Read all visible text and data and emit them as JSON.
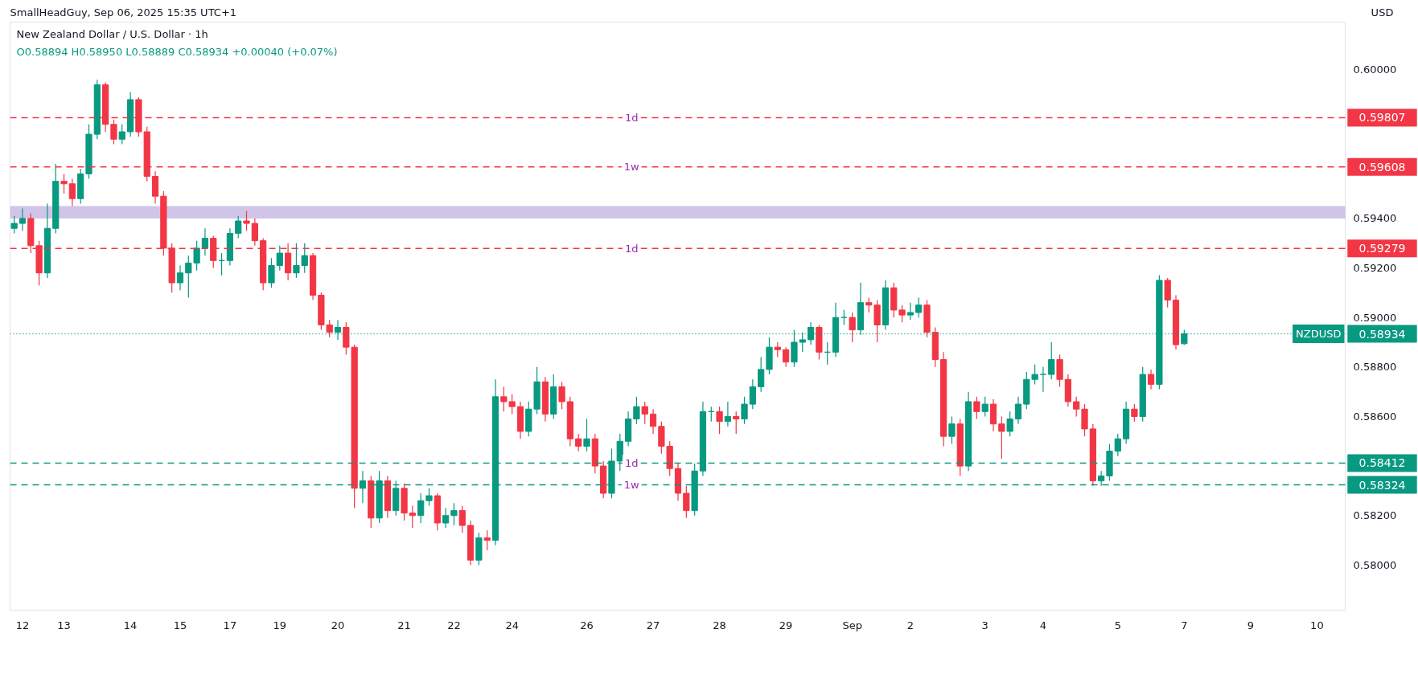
{
  "chart_data": {
    "type": "candlestick",
    "title": "New Zealand Dollar / U.S. Dollar · 1h",
    "subtitle": "O0.58894 H0.58950 L0.58889 C0.58934 +0.00040 (+0.07%)",
    "annotations": [
      "SmallHeadGuy, Sep 06, 2025 15:35 UTC+1",
      "USD",
      "0.59807",
      "0.59608",
      "0.59279",
      "0.58412",
      "0.58324",
      "0.58934"
    ],
    "categories": [
      null,
      "12",
      null,
      null,
      null,
      null,
      "13",
      null,
      null,
      null,
      null,
      null,
      null,
      null,
      "14",
      null,
      null,
      null,
      null,
      null,
      "15",
      null,
      null,
      null,
      null,
      null,
      "17",
      null,
      null,
      null,
      null,
      null,
      "19",
      null,
      null,
      null,
      null,
      null,
      null,
      "20",
      null,
      null,
      null,
      null,
      null,
      null,
      null,
      "21",
      null,
      null,
      null,
      null,
      null,
      "22",
      null,
      null,
      null,
      null,
      null,
      null,
      "24",
      null,
      null,
      null,
      null,
      null,
      null,
      null,
      null,
      "26",
      null,
      null,
      null,
      null,
      null,
      null,
      null,
      "27",
      null,
      null,
      null,
      null,
      null,
      null,
      null,
      "28",
      null,
      null,
      null,
      null,
      null,
      null,
      null,
      "29",
      null,
      null,
      null,
      null,
      null,
      null,
      null,
      "Sep",
      null,
      null,
      null,
      null,
      null,
      null,
      "2",
      null,
      null,
      null,
      null,
      null,
      null,
      null,
      null,
      "3",
      null,
      null,
      null,
      null,
      null,
      null,
      "4",
      null,
      null,
      null,
      null,
      null,
      null,
      null,
      null,
      "5",
      null,
      null,
      null,
      null,
      null,
      null,
      null,
      "7",
      null,
      null,
      null,
      null,
      null,
      null,
      null,
      "9",
      null,
      null,
      null,
      null,
      null,
      null,
      null,
      "10",
      null,
      null,
      null
    ],
    "ohlc": [
      [
        0.5936,
        0.5941,
        0.5934,
        0.5938
      ],
      [
        0.5938,
        0.5944,
        0.5935,
        0.594
      ],
      [
        0.594,
        0.5942,
        0.5926,
        0.5929
      ],
      [
        0.5929,
        0.5931,
        0.5913,
        0.5918
      ],
      [
        0.5918,
        0.5946,
        0.5916,
        0.5936
      ],
      [
        0.5936,
        0.5962,
        0.5934,
        0.5955
      ],
      [
        0.5955,
        0.5958,
        0.595,
        0.5954
      ],
      [
        0.5954,
        0.5956,
        0.5945,
        0.5948
      ],
      [
        0.5948,
        0.596,
        0.5946,
        0.5958
      ],
      [
        0.5958,
        0.5978,
        0.5956,
        0.5974
      ],
      [
        0.5974,
        0.5996,
        0.5972,
        0.5994
      ],
      [
        0.5994,
        0.5995,
        0.5975,
        0.5978
      ],
      [
        0.5978,
        0.598,
        0.597,
        0.5972
      ],
      [
        0.5972,
        0.5978,
        0.597,
        0.5975
      ],
      [
        0.5975,
        0.5991,
        0.5973,
        0.5988
      ],
      [
        0.5988,
        0.5989,
        0.5973,
        0.5975
      ],
      [
        0.5975,
        0.5977,
        0.5955,
        0.5957
      ],
      [
        0.5957,
        0.5959,
        0.5946,
        0.5949
      ],
      [
        0.5949,
        0.5951,
        0.5925,
        0.5928
      ],
      [
        0.5928,
        0.593,
        0.591,
        0.5914
      ],
      [
        0.5914,
        0.5921,
        0.5911,
        0.5918
      ],
      [
        0.5918,
        0.5925,
        0.5908,
        0.5922
      ],
      [
        0.5922,
        0.5931,
        0.5919,
        0.5928
      ],
      [
        0.5928,
        0.5936,
        0.5925,
        0.5932
      ],
      [
        0.5932,
        0.5933,
        0.592,
        0.5923
      ],
      [
        0.5923,
        0.5926,
        0.5917,
        0.5923
      ],
      [
        0.5923,
        0.5936,
        0.5921,
        0.5934
      ],
      [
        0.5934,
        0.5941,
        0.5932,
        0.5939
      ],
      [
        0.5939,
        0.5943,
        0.5935,
        0.5938
      ],
      [
        0.5938,
        0.594,
        0.5929,
        0.5931
      ],
      [
        0.5931,
        0.5932,
        0.5911,
        0.5914
      ],
      [
        0.5914,
        0.5924,
        0.5912,
        0.5921
      ],
      [
        0.5921,
        0.5929,
        0.5919,
        0.5926
      ],
      [
        0.5926,
        0.593,
        0.5915,
        0.5918
      ],
      [
        0.5918,
        0.593,
        0.5916,
        0.5921
      ],
      [
        0.5921,
        0.593,
        0.5918,
        0.5925
      ],
      [
        0.5925,
        0.5926,
        0.5907,
        0.5909
      ],
      [
        0.5909,
        0.591,
        0.5895,
        0.5897
      ],
      [
        0.5897,
        0.5899,
        0.5892,
        0.5894
      ],
      [
        0.5894,
        0.5899,
        0.5891,
        0.5896
      ],
      [
        0.5896,
        0.5898,
        0.5885,
        0.5888
      ],
      [
        0.5888,
        0.5889,
        0.5823,
        0.5831
      ],
      [
        0.5831,
        0.5838,
        0.5825,
        0.5834
      ],
      [
        0.5834,
        0.5836,
        0.5815,
        0.5819
      ],
      [
        0.5819,
        0.5838,
        0.5817,
        0.5834
      ],
      [
        0.5834,
        0.5836,
        0.5819,
        0.5822
      ],
      [
        0.5822,
        0.5834,
        0.582,
        0.5831
      ],
      [
        0.5831,
        0.5833,
        0.5818,
        0.5821
      ],
      [
        0.5821,
        0.5824,
        0.5815,
        0.582
      ],
      [
        0.582,
        0.5829,
        0.5817,
        0.5826
      ],
      [
        0.5826,
        0.5831,
        0.5824,
        0.5828
      ],
      [
        0.5828,
        0.5829,
        0.5814,
        0.5817
      ],
      [
        0.5817,
        0.5823,
        0.5815,
        0.582
      ],
      [
        0.582,
        0.5825,
        0.5816,
        0.5822
      ],
      [
        0.5822,
        0.5824,
        0.5813,
        0.5816
      ],
      [
        0.5816,
        0.5818,
        0.58,
        0.5802
      ],
      [
        0.5802,
        0.5813,
        0.58,
        0.5811
      ],
      [
        0.5811,
        0.5814,
        0.5806,
        0.581
      ],
      [
        0.581,
        0.5875,
        0.5808,
        0.5868
      ],
      [
        0.5868,
        0.5872,
        0.5862,
        0.5866
      ],
      [
        0.5866,
        0.5869,
        0.5861,
        0.5864
      ],
      [
        0.5864,
        0.5866,
        0.5851,
        0.5854
      ],
      [
        0.5854,
        0.5866,
        0.5852,
        0.5863
      ],
      [
        0.5863,
        0.588,
        0.5861,
        0.5874
      ],
      [
        0.5874,
        0.5876,
        0.5858,
        0.5861
      ],
      [
        0.5861,
        0.5877,
        0.5859,
        0.5872
      ],
      [
        0.5872,
        0.5874,
        0.5863,
        0.5866
      ],
      [
        0.5866,
        0.5868,
        0.5848,
        0.5851
      ],
      [
        0.5851,
        0.5853,
        0.5846,
        0.5848
      ],
      [
        0.5848,
        0.5859,
        0.5846,
        0.5851
      ],
      [
        0.5851,
        0.5853,
        0.5837,
        0.584
      ],
      [
        0.584,
        0.5842,
        0.5827,
        0.5829
      ],
      [
        0.5829,
        0.5847,
        0.5827,
        0.5842
      ],
      [
        0.5842,
        0.5853,
        0.5838,
        0.585
      ],
      [
        0.585,
        0.5862,
        0.5848,
        0.5859
      ],
      [
        0.5859,
        0.5868,
        0.5857,
        0.5864
      ],
      [
        0.5864,
        0.5866,
        0.5857,
        0.5861
      ],
      [
        0.5861,
        0.5863,
        0.5853,
        0.5856
      ],
      [
        0.5856,
        0.5858,
        0.5845,
        0.5848
      ],
      [
        0.5848,
        0.585,
        0.5836,
        0.5839
      ],
      [
        0.5839,
        0.5841,
        0.5826,
        0.5829
      ],
      [
        0.5829,
        0.5832,
        0.5819,
        0.5822
      ],
      [
        0.5822,
        0.5841,
        0.582,
        0.5838
      ],
      [
        0.5838,
        0.5866,
        0.5836,
        0.5862
      ],
      [
        0.5862,
        0.5864,
        0.5858,
        0.5862
      ],
      [
        0.5862,
        0.5864,
        0.5853,
        0.5858
      ],
      [
        0.5858,
        0.5866,
        0.5856,
        0.586
      ],
      [
        0.586,
        0.5862,
        0.5853,
        0.5859
      ],
      [
        0.5859,
        0.5868,
        0.5857,
        0.5865
      ],
      [
        0.5865,
        0.5875,
        0.5863,
        0.5872
      ],
      [
        0.5872,
        0.5884,
        0.587,
        0.5879
      ],
      [
        0.5879,
        0.5892,
        0.5877,
        0.5888
      ],
      [
        0.5888,
        0.589,
        0.5884,
        0.5887
      ],
      [
        0.5887,
        0.5888,
        0.588,
        0.5882
      ],
      [
        0.5882,
        0.5895,
        0.588,
        0.589
      ],
      [
        0.589,
        0.5894,
        0.5886,
        0.5891
      ],
      [
        0.5891,
        0.5898,
        0.5889,
        0.5896
      ],
      [
        0.5896,
        0.5897,
        0.5883,
        0.5886
      ],
      [
        0.5886,
        0.589,
        0.5881,
        0.5886
      ],
      [
        0.5886,
        0.5906,
        0.5884,
        0.59
      ],
      [
        0.59,
        0.5903,
        0.5897,
        0.59
      ],
      [
        0.59,
        0.5902,
        0.589,
        0.5895
      ],
      [
        0.5895,
        0.5914,
        0.5893,
        0.5906
      ],
      [
        0.5906,
        0.5908,
        0.5902,
        0.5905
      ],
      [
        0.5905,
        0.5907,
        0.589,
        0.5897
      ],
      [
        0.5897,
        0.5915,
        0.5895,
        0.5912
      ],
      [
        0.5912,
        0.5914,
        0.59,
        0.5903
      ],
      [
        0.5903,
        0.5905,
        0.5898,
        0.5901
      ],
      [
        0.5901,
        0.5906,
        0.5899,
        0.5902
      ],
      [
        0.5902,
        0.5908,
        0.59,
        0.5905
      ],
      [
        0.5905,
        0.5907,
        0.5892,
        0.5894
      ],
      [
        0.5894,
        0.5896,
        0.588,
        0.5883
      ],
      [
        0.5883,
        0.5886,
        0.5848,
        0.5852
      ],
      [
        0.5852,
        0.586,
        0.5849,
        0.5857
      ],
      [
        0.5857,
        0.5859,
        0.5836,
        0.584
      ],
      [
        0.584,
        0.587,
        0.5838,
        0.5866
      ],
      [
        0.5866,
        0.5868,
        0.5859,
        0.5862
      ],
      [
        0.5862,
        0.5868,
        0.586,
        0.5865
      ],
      [
        0.5865,
        0.5867,
        0.5854,
        0.5857
      ],
      [
        0.5857,
        0.586,
        0.5843,
        0.5854
      ],
      [
        0.5854,
        0.5862,
        0.5852,
        0.5859
      ],
      [
        0.5859,
        0.5868,
        0.5857,
        0.5865
      ],
      [
        0.5865,
        0.5878,
        0.5863,
        0.5875
      ],
      [
        0.5875,
        0.5881,
        0.5873,
        0.5877
      ],
      [
        0.5877,
        0.588,
        0.587,
        0.5877
      ],
      [
        0.5877,
        0.589,
        0.5875,
        0.5883
      ],
      [
        0.5883,
        0.5885,
        0.5872,
        0.5875
      ],
      [
        0.5875,
        0.5877,
        0.5864,
        0.5866
      ],
      [
        0.5866,
        0.5868,
        0.586,
        0.5863
      ],
      [
        0.5863,
        0.5865,
        0.5852,
        0.5855
      ],
      [
        0.5855,
        0.5857,
        0.5832,
        0.5834
      ],
      [
        0.5834,
        0.5838,
        0.5832,
        0.5836
      ],
      [
        0.5836,
        0.5849,
        0.5834,
        0.5846
      ],
      [
        0.5846,
        0.5853,
        0.5844,
        0.5851
      ],
      [
        0.5851,
        0.5866,
        0.5849,
        0.5863
      ],
      [
        0.5863,
        0.5865,
        0.5858,
        0.586
      ],
      [
        0.586,
        0.588,
        0.5858,
        0.5877
      ],
      [
        0.5877,
        0.5879,
        0.5871,
        0.5873
      ],
      [
        0.5873,
        0.5917,
        0.5871,
        0.5915
      ],
      [
        0.5915,
        0.5916,
        0.5904,
        0.5907
      ],
      [
        0.5907,
        0.5909,
        0.5887,
        0.5889
      ],
      [
        0.58894,
        0.5895,
        0.58889,
        0.58934
      ],
      null,
      null,
      null,
      null,
      null,
      null,
      null,
      null,
      null,
      null,
      null,
      null,
      null,
      null,
      null,
      null,
      null,
      null,
      null
    ],
    "ylim": [
      0.57818,
      0.60193
    ],
    "yticks": [
      {
        "value": 0.58,
        "label": "0.58000"
      },
      {
        "value": 0.582,
        "label": "0.58200"
      },
      {
        "value": 0.586,
        "label": "0.58600"
      },
      {
        "value": 0.588,
        "label": "0.58800"
      },
      {
        "value": 0.59,
        "label": "0.59000"
      },
      {
        "value": 0.592,
        "label": "0.59200"
      },
      {
        "value": 0.594,
        "label": "0.59400"
      },
      {
        "value": 0.6,
        "label": "0.60000"
      }
    ],
    "ref_lines": [
      {
        "axis": "y",
        "value": 0.59807,
        "label": "1d",
        "color": "#f23645",
        "line_style": "dashed"
      },
      {
        "axis": "y",
        "value": 0.59608,
        "label": "1w",
        "color": "#f23645",
        "line_style": "dashed"
      },
      {
        "axis": "y",
        "value": 0.59279,
        "label": "1d",
        "color": "#f23645",
        "line_style": "dashed"
      },
      {
        "axis": "y",
        "value": 0.58412,
        "label": "1d",
        "color": "#089981",
        "line_style": "dashed"
      },
      {
        "axis": "y",
        "value": 0.58324,
        "label": "1w",
        "color": "#089981",
        "line_style": "dashed"
      },
      {
        "axis": "y",
        "value": 0.58934,
        "label": "NZDUSD",
        "color": "#089981",
        "line_style": "dotted"
      }
    ],
    "bands": [
      {
        "axis": "y",
        "from": 0.594,
        "to": 0.5945,
        "color": "#d1c4e9"
      }
    ],
    "grid": false
  }
}
